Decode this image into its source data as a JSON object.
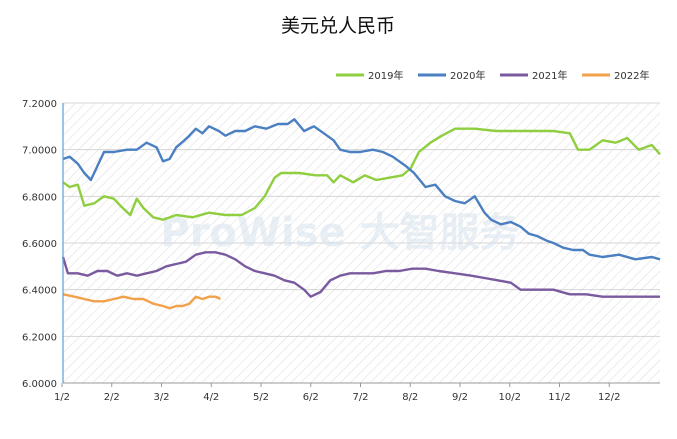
{
  "chart_data": {
    "type": "line",
    "title": "美元兑人民币",
    "xlabel": "",
    "ylabel": "",
    "x_ticks": [
      "1/2",
      "2/2",
      "3/2",
      "4/2",
      "5/2",
      "6/2",
      "7/2",
      "8/2",
      "9/2",
      "10/2",
      "11/2",
      "12/2"
    ],
    "y_ticks": [
      "6.0000",
      "6.2000",
      "6.4000",
      "6.6000",
      "6.8000",
      "7.0000",
      "7.2000"
    ],
    "ylim": [
      6.0,
      7.2
    ],
    "xlim": [
      1,
      365
    ],
    "legend_position": "top-right",
    "watermark": "ProWise 大智服务",
    "series": [
      {
        "name": "2019年",
        "color": "#8fce3f",
        "points": [
          [
            1,
            6.86
          ],
          [
            5,
            6.84
          ],
          [
            10,
            6.85
          ],
          [
            14,
            6.76
          ],
          [
            20,
            6.77
          ],
          [
            26,
            6.8
          ],
          [
            32,
            6.79
          ],
          [
            36,
            6.76
          ],
          [
            42,
            6.72
          ],
          [
            46,
            6.79
          ],
          [
            50,
            6.75
          ],
          [
            56,
            6.71
          ],
          [
            62,
            6.7
          ],
          [
            70,
            6.72
          ],
          [
            80,
            6.71
          ],
          [
            90,
            6.73
          ],
          [
            100,
            6.72
          ],
          [
            110,
            6.72
          ],
          [
            118,
            6.75
          ],
          [
            124,
            6.8
          ],
          [
            130,
            6.88
          ],
          [
            134,
            6.9
          ],
          [
            145,
            6.9
          ],
          [
            155,
            6.89
          ],
          [
            162,
            6.89
          ],
          [
            166,
            6.86
          ],
          [
            170,
            6.89
          ],
          [
            178,
            6.86
          ],
          [
            185,
            6.89
          ],
          [
            192,
            6.87
          ],
          [
            200,
            6.88
          ],
          [
            208,
            6.89
          ],
          [
            213,
            6.92
          ],
          [
            218,
            6.99
          ],
          [
            225,
            7.03
          ],
          [
            232,
            7.06
          ],
          [
            240,
            7.09
          ],
          [
            252,
            7.09
          ],
          [
            265,
            7.08
          ],
          [
            280,
            7.08
          ],
          [
            300,
            7.08
          ],
          [
            310,
            7.07
          ],
          [
            315,
            7.0
          ],
          [
            322,
            7.0
          ],
          [
            330,
            7.04
          ],
          [
            338,
            7.03
          ],
          [
            345,
            7.05
          ],
          [
            352,
            7.0
          ],
          [
            360,
            7.02
          ],
          [
            365,
            6.98
          ]
        ]
      },
      {
        "name": "2020年",
        "color": "#4a7fc1",
        "points": [
          [
            1,
            6.96
          ],
          [
            5,
            6.97
          ],
          [
            10,
            6.94
          ],
          [
            14,
            6.9
          ],
          [
            18,
            6.87
          ],
          [
            22,
            6.93
          ],
          [
            26,
            6.99
          ],
          [
            32,
            6.99
          ],
          [
            40,
            7.0
          ],
          [
            46,
            7.0
          ],
          [
            52,
            7.03
          ],
          [
            58,
            7.01
          ],
          [
            62,
            6.95
          ],
          [
            66,
            6.96
          ],
          [
            70,
            7.01
          ],
          [
            75,
            7.04
          ],
          [
            78,
            7.06
          ],
          [
            82,
            7.09
          ],
          [
            86,
            7.07
          ],
          [
            90,
            7.1
          ],
          [
            96,
            7.08
          ],
          [
            100,
            7.06
          ],
          [
            106,
            7.08
          ],
          [
            112,
            7.08
          ],
          [
            118,
            7.1
          ],
          [
            125,
            7.09
          ],
          [
            132,
            7.11
          ],
          [
            138,
            7.11
          ],
          [
            142,
            7.13
          ],
          [
            148,
            7.08
          ],
          [
            154,
            7.1
          ],
          [
            160,
            7.07
          ],
          [
            166,
            7.04
          ],
          [
            170,
            7.0
          ],
          [
            176,
            6.99
          ],
          [
            182,
            6.99
          ],
          [
            190,
            7.0
          ],
          [
            196,
            6.99
          ],
          [
            202,
            6.97
          ],
          [
            210,
            6.93
          ],
          [
            215,
            6.9
          ],
          [
            222,
            6.84
          ],
          [
            228,
            6.85
          ],
          [
            234,
            6.8
          ],
          [
            240,
            6.78
          ],
          [
            246,
            6.77
          ],
          [
            252,
            6.8
          ],
          [
            258,
            6.73
          ],
          [
            262,
            6.7
          ],
          [
            268,
            6.68
          ],
          [
            274,
            6.69
          ],
          [
            280,
            6.67
          ],
          [
            285,
            6.64
          ],
          [
            290,
            6.63
          ],
          [
            296,
            6.61
          ],
          [
            300,
            6.6
          ],
          [
            306,
            6.58
          ],
          [
            312,
            6.57
          ],
          [
            318,
            6.57
          ],
          [
            322,
            6.55
          ],
          [
            330,
            6.54
          ],
          [
            340,
            6.55
          ],
          [
            350,
            6.53
          ],
          [
            360,
            6.54
          ],
          [
            365,
            6.53
          ]
        ]
      },
      {
        "name": "2021年",
        "color": "#7a5a9f",
        "points": [
          [
            1,
            6.54
          ],
          [
            4,
            6.47
          ],
          [
            10,
            6.47
          ],
          [
            16,
            6.46
          ],
          [
            22,
            6.48
          ],
          [
            28,
            6.48
          ],
          [
            34,
            6.46
          ],
          [
            40,
            6.47
          ],
          [
            46,
            6.46
          ],
          [
            52,
            6.47
          ],
          [
            58,
            6.48
          ],
          [
            64,
            6.5
          ],
          [
            70,
            6.51
          ],
          [
            76,
            6.52
          ],
          [
            82,
            6.55
          ],
          [
            88,
            6.56
          ],
          [
            94,
            6.56
          ],
          [
            100,
            6.55
          ],
          [
            106,
            6.53
          ],
          [
            112,
            6.5
          ],
          [
            118,
            6.48
          ],
          [
            124,
            6.47
          ],
          [
            130,
            6.46
          ],
          [
            136,
            6.44
          ],
          [
            142,
            6.43
          ],
          [
            148,
            6.4
          ],
          [
            152,
            6.37
          ],
          [
            158,
            6.39
          ],
          [
            164,
            6.44
          ],
          [
            170,
            6.46
          ],
          [
            176,
            6.47
          ],
          [
            182,
            6.47
          ],
          [
            190,
            6.47
          ],
          [
            198,
            6.48
          ],
          [
            206,
            6.48
          ],
          [
            214,
            6.49
          ],
          [
            222,
            6.49
          ],
          [
            230,
            6.48
          ],
          [
            240,
            6.47
          ],
          [
            250,
            6.46
          ],
          [
            258,
            6.45
          ],
          [
            266,
            6.44
          ],
          [
            274,
            6.43
          ],
          [
            280,
            6.4
          ],
          [
            290,
            6.4
          ],
          [
            300,
            6.4
          ],
          [
            310,
            6.38
          ],
          [
            320,
            6.38
          ],
          [
            330,
            6.37
          ],
          [
            340,
            6.37
          ],
          [
            350,
            6.37
          ],
          [
            360,
            6.37
          ],
          [
            365,
            6.37
          ]
        ]
      },
      {
        "name": "2022年",
        "color": "#f2a14b",
        "points": [
          [
            1,
            6.38
          ],
          [
            8,
            6.37
          ],
          [
            14,
            6.36
          ],
          [
            20,
            6.35
          ],
          [
            26,
            6.35
          ],
          [
            32,
            6.36
          ],
          [
            38,
            6.37
          ],
          [
            44,
            6.36
          ],
          [
            50,
            6.36
          ],
          [
            56,
            6.34
          ],
          [
            62,
            6.33
          ],
          [
            66,
            6.32
          ],
          [
            70,
            6.33
          ],
          [
            74,
            6.33
          ],
          [
            78,
            6.34
          ],
          [
            82,
            6.37
          ],
          [
            86,
            6.36
          ],
          [
            90,
            6.37
          ],
          [
            94,
            6.37
          ],
          [
            97,
            6.36
          ]
        ]
      }
    ]
  }
}
